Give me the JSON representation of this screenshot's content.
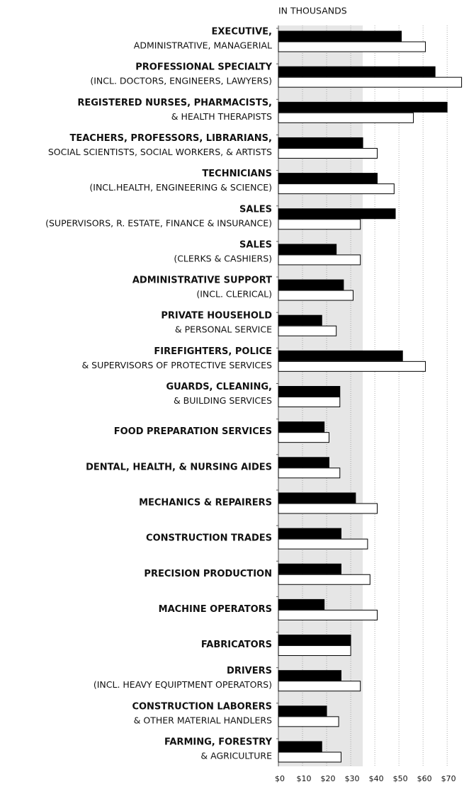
{
  "chart_data": {
    "type": "bar",
    "orientation": "horizontal",
    "axis_label": "IN THOUSANDS",
    "categories": [
      "EXECUTIVE,",
      "PROFESSIONAL SPECIALTY",
      "REGISTERED NURSES, PHARMACISTS,",
      "TEACHERS, PROFESSORS, LIBRARIANS,",
      "TECHNICIANS",
      "SALES",
      "SALES",
      "ADMINISTRATIVE SUPPORT",
      "PRIVATE HOUSEHOLD",
      "FIREFIGHTERS, POLICE",
      "GUARDS, CLEANING,",
      "FOOD PREPARATION SERVICES",
      "DENTAL, HEALTH, & NURSING AIDES",
      "MECHANICS & REPAIRERS",
      "CONSTRUCTION TRADES",
      "PRECISION PRODUCTION",
      "MACHINE OPERATORS",
      "FABRICATORS",
      "DRIVERS",
      "CONSTRUCTION LABORERS",
      "FARMING, FORESTRY"
    ],
    "category_notes": [
      "ADMINISTRATIVE, MANAGERIAL",
      "(INCL. DOCTORS, ENGINEERS, LAWYERS)",
      "& HEALTH THERAPISTS",
      "SOCIAL SCIENTISTS, SOCIAL WORKERS, & ARTISTS",
      "(INCL.HEALTH, ENGINEERING & SCIENCE)",
      "(SUPERVISORS, R. ESTATE, FINANCE & INSURANCE)",
      "(CLERKS & CASHIERS)",
      "(INCL. CLERICAL)",
      "& PERSONAL SERVICE",
      "& SUPERVISORS OF PROTECTIVE SERVICES",
      "& BUILDING SERVICES",
      null,
      null,
      null,
      null,
      null,
      null,
      null,
      "(INCL. HEAVY EQUIPTMENT OPERATORS)",
      "& OTHER MATERIAL HANDLERS",
      "& AGRICULTURE"
    ],
    "series": [
      {
        "color": "#000000",
        "values": [
          51,
          65,
          70,
          35,
          41,
          48.5,
          24,
          27,
          18,
          51.5,
          25.5,
          19,
          21,
          32,
          26,
          26,
          19,
          30,
          26,
          20,
          18
        ]
      },
      {
        "color": "#ffffff",
        "values": [
          61,
          76,
          56,
          41,
          48,
          34,
          34,
          31,
          24,
          61,
          25.5,
          21,
          25.5,
          41,
          37,
          38,
          41,
          30,
          34,
          25,
          26
        ]
      }
    ],
    "xlim": [
      0,
      77
    ],
    "xticks": [
      {
        "value": 0,
        "label": "$0"
      },
      {
        "value": 10,
        "label": "$10"
      },
      {
        "value": 20,
        "label": "$20"
      },
      {
        "value": 30,
        "label": "$30"
      },
      {
        "value": 40,
        "label": "$40"
      },
      {
        "value": 50,
        "label": "$50"
      },
      {
        "value": 60,
        "label": "$60"
      },
      {
        "value": 70,
        "label": "$70"
      }
    ],
    "shaded_range": [
      0,
      35
    ],
    "grid": true
  }
}
